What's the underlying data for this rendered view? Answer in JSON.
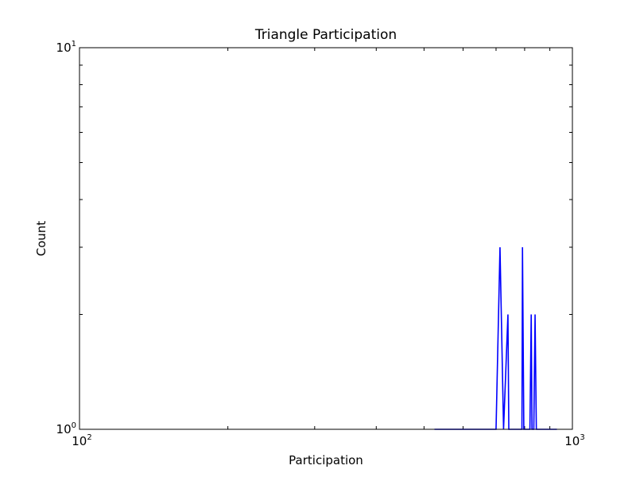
{
  "chart_data": {
    "type": "line",
    "title": "Triangle Participation",
    "xlabel": "Participation",
    "ylabel": "Count",
    "xscale": "log",
    "yscale": "log",
    "xlim": [
      100,
      1000
    ],
    "ylim": [
      1,
      10
    ],
    "x_tick_labels": [
      {
        "base": "10",
        "exp": "2",
        "value": 100
      },
      {
        "base": "10",
        "exp": "3",
        "value": 1000
      }
    ],
    "y_tick_labels": [
      {
        "base": "10",
        "exp": "0",
        "value": 1
      },
      {
        "base": "10",
        "exp": "1",
        "value": 10
      }
    ],
    "grid": false,
    "series": [
      {
        "color": "#0000ff",
        "points": [
          [
            525,
            1
          ],
          [
            700,
            1
          ],
          [
            713,
            3
          ],
          [
            725,
            1
          ],
          [
            740,
            2
          ],
          [
            743,
            1
          ],
          [
            790,
            1
          ],
          [
            792,
            3
          ],
          [
            797,
            1
          ],
          [
            820,
            1
          ],
          [
            825,
            2
          ],
          [
            828,
            1
          ],
          [
            835,
            1
          ],
          [
            840,
            2
          ],
          [
            845,
            1
          ],
          [
            930,
            1
          ]
        ]
      }
    ]
  }
}
